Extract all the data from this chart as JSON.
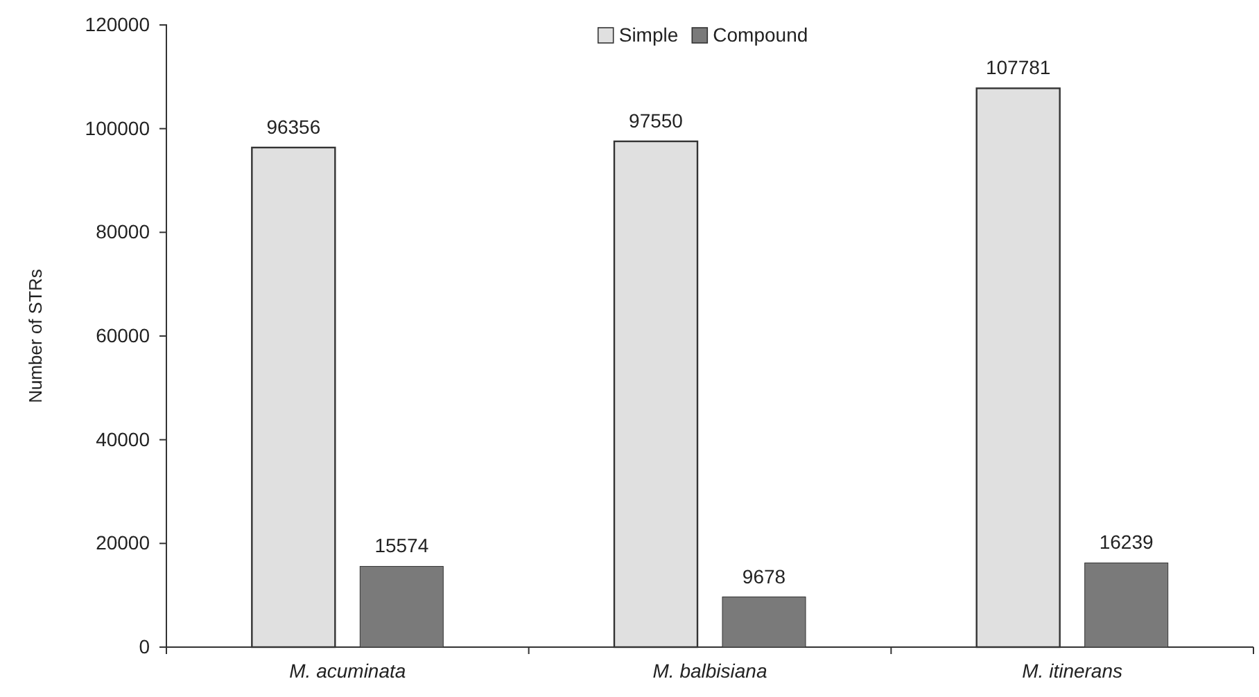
{
  "chart_data": {
    "type": "bar",
    "ylabel": "Number of STRs",
    "categories": [
      "M. acuminata",
      "M. balbisiana",
      "M. itinerans"
    ],
    "series": [
      {
        "name": "Simple",
        "color": "#e0e0e0",
        "values": [
          96356,
          97550,
          107781
        ]
      },
      {
        "name": "Compound",
        "color": "#7a7a7a",
        "values": [
          15574,
          9678,
          16239
        ]
      }
    ],
    "ylim": [
      0,
      120000
    ],
    "yticks": [
      0,
      20000,
      40000,
      60000,
      80000,
      100000,
      120000
    ],
    "data_labels": true,
    "legend": "top",
    "grid": false
  }
}
